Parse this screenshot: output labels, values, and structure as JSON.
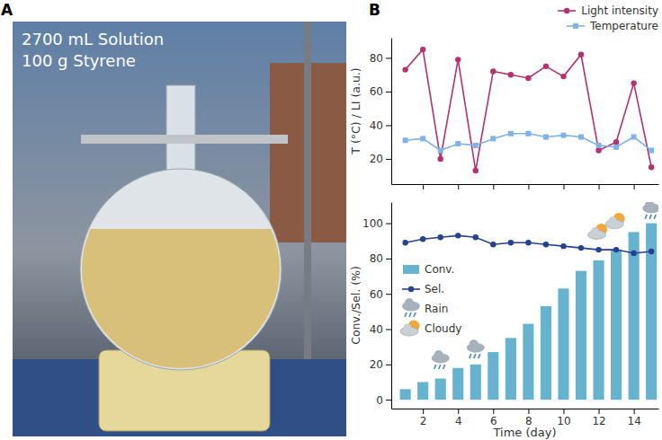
{
  "panels": [
    {
      "label": "A",
      "texts": [
        "2700 mL Solution",
        "100 g Styrene"
      ]
    },
    {
      "label": "B"
    }
  ],
  "chart_data": [
    {
      "type": "line",
      "y_label": "T (°C) / LI (a.u.)",
      "x": [
        1,
        2,
        3,
        4,
        5,
        6,
        7,
        8,
        9,
        10,
        11,
        12,
        13,
        14,
        15
      ],
      "series": [
        {
          "name": "Light intensity",
          "color": "#b5316f",
          "marker": "circle",
          "values": [
            73,
            85,
            20,
            79,
            13,
            72,
            70,
            68,
            75,
            69,
            82,
            25,
            30,
            65,
            15
          ]
        },
        {
          "name": "Temperature",
          "color": "#7fb2e5",
          "marker": "square",
          "values": [
            31,
            32,
            25,
            29,
            28,
            32,
            35,
            35,
            33,
            34,
            33,
            28,
            27,
            33,
            25
          ]
        }
      ],
      "xlim": [
        0.2,
        15.4
      ],
      "xticks": [
        2,
        4,
        6,
        8,
        10,
        12,
        14
      ],
      "ylim": [
        5,
        92
      ],
      "yticks": [
        20,
        40,
        60,
        80
      ],
      "tick_labels": "y",
      "legend": "top-right"
    },
    {
      "type": "bar",
      "x_label": "Time (day)",
      "y_label": "Conv./Sel. (%)",
      "x": [
        1,
        2,
        3,
        4,
        5,
        6,
        7,
        8,
        9,
        10,
        11,
        12,
        13,
        14,
        15
      ],
      "series": [
        {
          "name": "Conv.",
          "type": "bar",
          "color": "#66b2cf",
          "values": [
            6,
            10,
            12,
            18,
            20,
            27,
            35,
            43,
            53,
            63,
            73,
            79,
            85,
            95,
            100
          ]
        },
        {
          "name": "Sel.",
          "type": "line",
          "color": "#25418f",
          "marker": "circle",
          "values": [
            89,
            91,
            92,
            93,
            92,
            88,
            89,
            89,
            88,
            87,
            86,
            85,
            85,
            83,
            84
          ]
        },
        {
          "name": "Rain",
          "type": "scatter",
          "marker": "rain",
          "x": [
            3,
            5,
            15
          ],
          "values": [
            22,
            28,
            107
          ]
        },
        {
          "name": "Cloudy",
          "type": "scatter",
          "marker": "cloudy",
          "x": [
            12,
            13
          ],
          "values": [
            95,
            101
          ]
        }
      ],
      "xlim": [
        0.2,
        15.4
      ],
      "xticks": [
        2,
        4,
        6,
        8,
        10,
        12,
        14
      ],
      "ylim": [
        -5,
        112
      ],
      "yticks": [
        0,
        20,
        40,
        60,
        80,
        100
      ],
      "legend": "left"
    }
  ]
}
